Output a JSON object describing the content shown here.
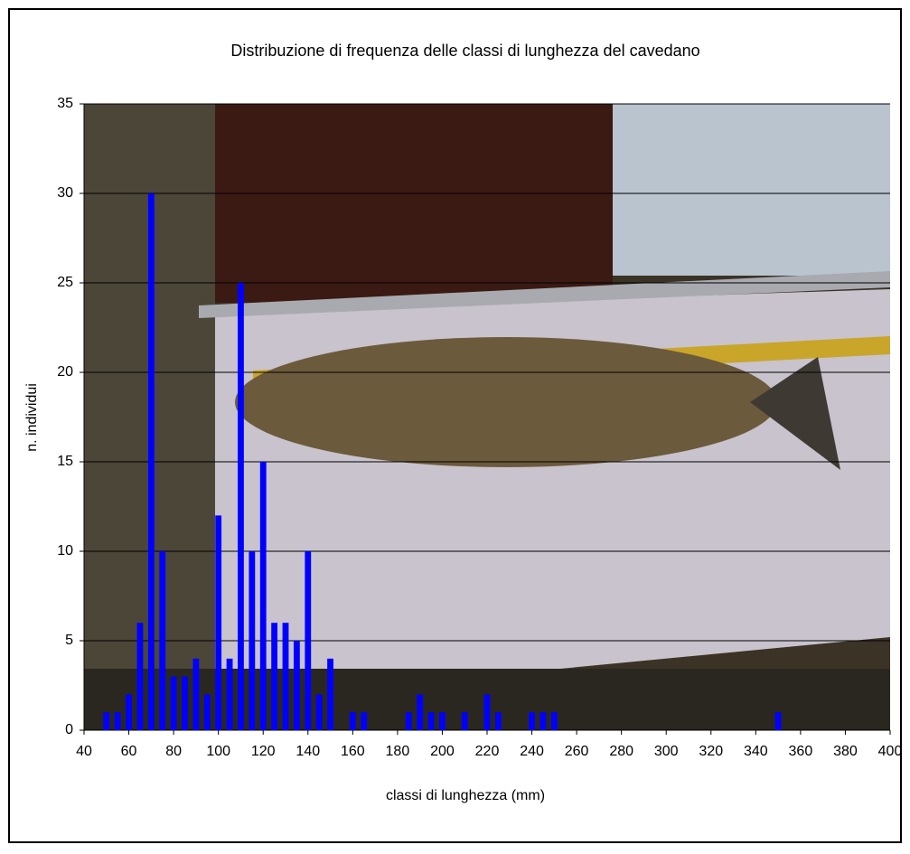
{
  "chart_data": {
    "type": "bar",
    "title": "Distribuzione di frequenza delle classi di lunghezza del cavedano",
    "x_label": "classi di lunghezza (mm)",
    "y_label": "n. individui",
    "x": [
      50,
      55,
      60,
      65,
      70,
      75,
      80,
      85,
      90,
      95,
      100,
      105,
      110,
      115,
      120,
      125,
      130,
      135,
      140,
      145,
      150,
      160,
      165,
      185,
      190,
      195,
      200,
      210,
      220,
      225,
      240,
      245,
      250,
      350
    ],
    "values": [
      1,
      1,
      2,
      6,
      30,
      10,
      3,
      3,
      4,
      2,
      12,
      4,
      25,
      10,
      15,
      6,
      6,
      5,
      10,
      2,
      4,
      1,
      1,
      1,
      2,
      1,
      1,
      1,
      2,
      1,
      1,
      1,
      1,
      1
    ],
    "color": "#0000ff",
    "xlim": [
      40,
      400
    ],
    "ylim": [
      0,
      35
    ],
    "xticks": [
      40,
      60,
      80,
      100,
      120,
      140,
      160,
      180,
      200,
      220,
      240,
      260,
      280,
      300,
      320,
      340,
      360,
      380,
      400
    ],
    "yticks": [
      0,
      5,
      10,
      15,
      20,
      25,
      30,
      35
    ],
    "grid": true
  }
}
